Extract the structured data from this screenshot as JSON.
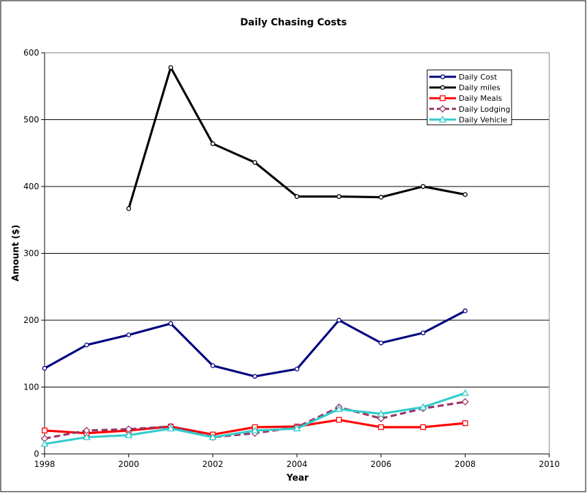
{
  "chart_data": {
    "type": "line",
    "title": "Daily Chasing Costs",
    "xlabel": "Year",
    "ylabel": "Amount ($)",
    "xlim": [
      1998,
      2010
    ],
    "ylim": [
      0,
      600
    ],
    "x_ticks": [
      1998,
      2000,
      2002,
      2004,
      2006,
      2008,
      2010
    ],
    "y_ticks": [
      0,
      100,
      200,
      300,
      400,
      500,
      600
    ],
    "grid": "horizontal",
    "legend_position": "top-right",
    "series": [
      {
        "name": "Daily Cost",
        "color": "#000080",
        "marker": "circle",
        "dashed": false,
        "points": [
          [
            1998,
            128
          ],
          [
            1999,
            163
          ],
          [
            2000,
            178
          ],
          [
            2001,
            195
          ],
          [
            2002,
            132
          ],
          [
            2003,
            116
          ],
          [
            2004,
            127
          ],
          [
            2005,
            200
          ],
          [
            2006,
            166
          ],
          [
            2007,
            181
          ],
          [
            2008,
            214
          ]
        ]
      },
      {
        "name": "Daily miles",
        "color": "#000000",
        "marker": "circle",
        "dashed": false,
        "points": [
          [
            2000,
            367
          ],
          [
            2001,
            578
          ],
          [
            2002,
            464
          ],
          [
            2003,
            436
          ],
          [
            2004,
            385
          ],
          [
            2005,
            385
          ],
          [
            2006,
            384
          ],
          [
            2007,
            400
          ],
          [
            2008,
            388
          ]
        ]
      },
      {
        "name": "Daily Meals",
        "color": "#ff0000",
        "marker": "square",
        "dashed": false,
        "points": [
          [
            1998,
            35
          ],
          [
            1999,
            31
          ],
          [
            2000,
            35
          ],
          [
            2001,
            41
          ],
          [
            2002,
            29
          ],
          [
            2003,
            40
          ],
          [
            2004,
            41
          ],
          [
            2005,
            51
          ],
          [
            2006,
            40
          ],
          [
            2007,
            40
          ],
          [
            2008,
            46
          ]
        ]
      },
      {
        "name": "Daily Lodging",
        "color": "#993366",
        "marker": "diamond",
        "dashed": true,
        "points": [
          [
            1998,
            23
          ],
          [
            1999,
            35
          ],
          [
            2000,
            37
          ],
          [
            2001,
            41
          ],
          [
            2002,
            25
          ],
          [
            2003,
            31
          ],
          [
            2004,
            40
          ],
          [
            2005,
            70
          ],
          [
            2006,
            53
          ],
          [
            2007,
            68
          ],
          [
            2008,
            78
          ]
        ]
      },
      {
        "name": "Daily Vehicle",
        "color": "#33cccc",
        "marker": "triangle",
        "dashed": false,
        "points": [
          [
            1998,
            15
          ],
          [
            1999,
            25
          ],
          [
            2000,
            28
          ],
          [
            2001,
            38
          ],
          [
            2002,
            25
          ],
          [
            2003,
            35
          ],
          [
            2004,
            38
          ],
          [
            2005,
            67
          ],
          [
            2006,
            60
          ],
          [
            2007,
            70
          ],
          [
            2008,
            91
          ]
        ]
      }
    ]
  }
}
